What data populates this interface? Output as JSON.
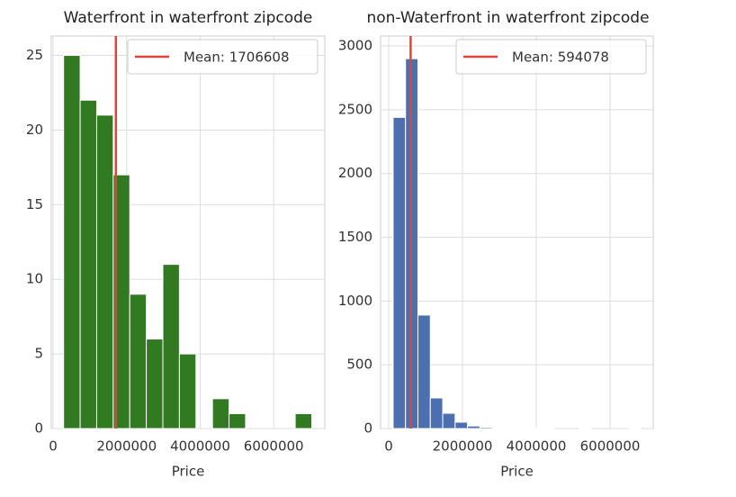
{
  "chart_data": [
    {
      "type": "histogram",
      "title": "Waterfront in waterfront zipcode",
      "xlabel": "Price",
      "bins": [
        285000,
        735000,
        1185000,
        1635000,
        2085000,
        2535000,
        2985000,
        3435000,
        3885000,
        4335000,
        4785000,
        5235000,
        5685000,
        6135000,
        6585000,
        7035000
      ],
      "values": [
        25,
        22,
        21,
        17,
        9,
        6,
        11,
        5,
        0,
        2,
        1,
        0,
        0,
        0,
        1
      ],
      "color": "#317a22",
      "xlim": [
        -50000,
        7390000
      ],
      "ylim": [
        0,
        26.3
      ],
      "xticks": [
        0,
        2000000,
        4000000,
        6000000
      ],
      "yticks": [
        0,
        5,
        10,
        15,
        20,
        25
      ],
      "grid": true,
      "legend": "upper right",
      "mean": {
        "value": 1706608,
        "color": "#e0443a",
        "label": "Mean: 1706608"
      }
    },
    {
      "type": "histogram",
      "title": "non-Waterfront in waterfront zipcode",
      "xlabel": "Price",
      "bins": [
        120000,
        456000,
        792000,
        1128000,
        1464000,
        1800000,
        2136000,
        2472000,
        2808000,
        3144000,
        3480000,
        3816000,
        4152000,
        4488000,
        4824000,
        5160000,
        5496000,
        5832000,
        6168000,
        6504000,
        6840000
      ],
      "values": [
        2440,
        2900,
        890,
        240,
        120,
        50,
        20,
        10,
        5,
        3,
        2,
        1,
        1,
        0,
        0,
        1,
        0,
        0,
        0,
        1
      ],
      "color": "#4c6fb0",
      "xlim": [
        -220000,
        7170000
      ],
      "ylim": [
        0,
        3078
      ],
      "xticks": [
        0,
        2000000,
        4000000,
        6000000
      ],
      "yticks": [
        0,
        500,
        1000,
        1500,
        2000,
        2500,
        3000
      ],
      "grid": true,
      "legend": "upper right",
      "mean": {
        "value": 594078,
        "color": "#e0443a",
        "label": "Mean: 594078"
      }
    }
  ]
}
